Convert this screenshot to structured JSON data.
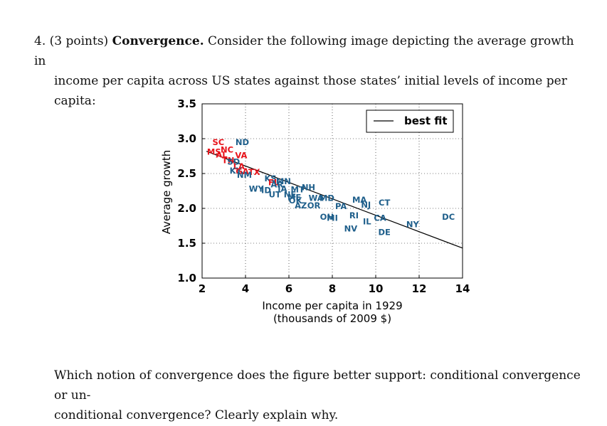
{
  "question": {
    "number": "4.",
    "points": "(3 points)",
    "title": "Convergence.",
    "line1": "Consider the following image depicting the average growth in",
    "line2": "income per capita across US states against those states’ initial levels of income per capita:"
  },
  "followup": {
    "line1": "Which notion of convergence does the figure better support: conditional convergence or un-",
    "line2": "conditional convergence? Clearly explain why."
  },
  "chart_data": {
    "type": "scatter",
    "xlabel_line1": "Income per capita in 1929",
    "xlabel_line2": "(thousands of 2009 $)",
    "ylabel": "Average growth",
    "xlim": [
      2,
      14
    ],
    "ylim": [
      1.0,
      3.5
    ],
    "xticks": [
      "2",
      "4",
      "6",
      "8",
      "10",
      "12",
      "14"
    ],
    "xtick_values": [
      2,
      4,
      6,
      8,
      10,
      12,
      14
    ],
    "yticks": [
      "1.0",
      "1.5",
      "2.0",
      "2.5",
      "3.0",
      "3.5"
    ],
    "ytick_values": [
      1.0,
      1.5,
      2.0,
      2.5,
      3.0,
      3.5
    ],
    "grid": true,
    "legend": {
      "label": "best fit",
      "position": "top-right"
    },
    "best_fit": {
      "x": [
        2.2,
        14
      ],
      "y": [
        2.82,
        1.43
      ]
    },
    "colors": {
      "south": "#e8141b",
      "other": "#1f5f8b",
      "fit": "#000000"
    },
    "points": [
      {
        "label": "SC",
        "x": 2.75,
        "y": 2.95,
        "group": "south"
      },
      {
        "label": "ND",
        "x": 3.85,
        "y": 2.95,
        "group": "other"
      },
      {
        "label": "MS",
        "x": 2.55,
        "y": 2.81,
        "group": "south"
      },
      {
        "label": "NC",
        "x": 3.15,
        "y": 2.84,
        "group": "south"
      },
      {
        "label": "AL",
        "x": 2.9,
        "y": 2.77,
        "group": "south"
      },
      {
        "label": "VA",
        "x": 3.8,
        "y": 2.76,
        "group": "south"
      },
      {
        "label": "TN",
        "x": 3.2,
        "y": 2.69,
        "group": "south"
      },
      {
        "label": "SD",
        "x": 3.45,
        "y": 2.67,
        "group": "other"
      },
      {
        "label": "LA",
        "x": 3.7,
        "y": 2.6,
        "group": "south"
      },
      {
        "label": "KY",
        "x": 3.55,
        "y": 2.54,
        "group": "other"
      },
      {
        "label": "GA",
        "x": 3.85,
        "y": 2.53,
        "group": "south"
      },
      {
        "label": "TX",
        "x": 4.4,
        "y": 2.52,
        "group": "south"
      },
      {
        "label": "NM",
        "x": 3.95,
        "y": 2.48,
        "group": "other"
      },
      {
        "label": "KS",
        "x": 5.15,
        "y": 2.43,
        "group": "other"
      },
      {
        "label": "FL",
        "x": 5.3,
        "y": 2.37,
        "group": "south"
      },
      {
        "label": "MN",
        "x": 5.75,
        "y": 2.39,
        "group": "other"
      },
      {
        "label": "AR",
        "x": 5.45,
        "y": 2.34,
        "group": "other"
      },
      {
        "label": "NH",
        "x": 6.9,
        "y": 2.3,
        "group": "other"
      },
      {
        "label": "WY",
        "x": 4.5,
        "y": 2.28,
        "group": "other"
      },
      {
        "label": "ID",
        "x": 4.95,
        "y": 2.26,
        "group": "other"
      },
      {
        "label": "IA",
        "x": 5.7,
        "y": 2.28,
        "group": "other"
      },
      {
        "label": "MT",
        "x": 6.4,
        "y": 2.27,
        "group": "other"
      },
      {
        "label": "UT",
        "x": 5.35,
        "y": 2.2,
        "group": "other"
      },
      {
        "label": "NE",
        "x": 6.05,
        "y": 2.2,
        "group": "other"
      },
      {
        "label": "ME",
        "x": 6.25,
        "y": 2.16,
        "group": "other"
      },
      {
        "label": "OK",
        "x": 6.3,
        "y": 2.11,
        "group": "other"
      },
      {
        "label": "WA",
        "x": 7.25,
        "y": 2.15,
        "group": "other"
      },
      {
        "label": "MD",
        "x": 7.75,
        "y": 2.15,
        "group": "other"
      },
      {
        "label": "AZ",
        "x": 6.55,
        "y": 2.04,
        "group": "other"
      },
      {
        "label": "OR",
        "x": 7.15,
        "y": 2.04,
        "group": "other"
      },
      {
        "label": "MA",
        "x": 9.25,
        "y": 2.12,
        "group": "other"
      },
      {
        "label": "PA",
        "x": 8.4,
        "y": 2.03,
        "group": "other"
      },
      {
        "label": "NJ",
        "x": 9.55,
        "y": 2.05,
        "group": "other"
      },
      {
        "label": "CT",
        "x": 10.4,
        "y": 2.08,
        "group": "other"
      },
      {
        "label": "OH",
        "x": 7.75,
        "y": 1.88,
        "group": "other"
      },
      {
        "label": "MI",
        "x": 8.0,
        "y": 1.86,
        "group": "other"
      },
      {
        "label": "RI",
        "x": 9.0,
        "y": 1.9,
        "group": "other"
      },
      {
        "label": "IL",
        "x": 9.6,
        "y": 1.81,
        "group": "other"
      },
      {
        "label": "CA",
        "x": 10.2,
        "y": 1.86,
        "group": "other"
      },
      {
        "label": "DC",
        "x": 13.35,
        "y": 1.88,
        "group": "other"
      },
      {
        "label": "NY",
        "x": 11.7,
        "y": 1.77,
        "group": "other"
      },
      {
        "label": "NV",
        "x": 8.85,
        "y": 1.71,
        "group": "other"
      },
      {
        "label": "DE",
        "x": 10.4,
        "y": 1.66,
        "group": "other"
      }
    ]
  }
}
